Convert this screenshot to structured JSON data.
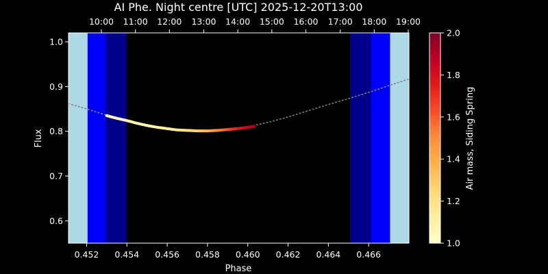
{
  "chart_data": {
    "type": "scatter",
    "title": "AI Phe. Night centre [UTC] 2025-12-20T13:00",
    "xlabel": "Phase",
    "ylabel": "Flux",
    "xlim": [
      0.4511,
      0.468
    ],
    "ylim": [
      0.55,
      1.02
    ],
    "x_ticks": [
      {
        "value": 0.452,
        "label": "0.452"
      },
      {
        "value": 0.454,
        "label": "0.454"
      },
      {
        "value": 0.456,
        "label": "0.456"
      },
      {
        "value": 0.458,
        "label": "0.458"
      },
      {
        "value": 0.46,
        "label": "0.460"
      },
      {
        "value": 0.462,
        "label": "0.462"
      },
      {
        "value": 0.464,
        "label": "0.464"
      },
      {
        "value": 0.466,
        "label": "0.466"
      }
    ],
    "y_ticks": [
      {
        "value": 0.6,
        "label": "0.6"
      },
      {
        "value": 0.7,
        "label": "0.7"
      },
      {
        "value": 0.8,
        "label": "0.8"
      },
      {
        "value": 0.9,
        "label": "0.9"
      },
      {
        "value": 1.0,
        "label": "1.0"
      }
    ],
    "top_axis_ticks": [
      {
        "phase": 0.45268,
        "label": "10:00"
      },
      {
        "phase": 0.45364,
        "label": "11:00"
      },
      {
        "phase": 0.4546,
        "label": "12:00"
      },
      {
        "phase": 0.45557,
        "label": "13:00"
      },
      {
        "phase": 0.45653,
        "label": "14:00"
      },
      {
        "phase": 0.45749,
        "label": "15:00"
      },
      {
        "phase": 0.45845,
        "label": "16:00"
      },
      {
        "phase": 0.45942,
        "label": "17:00"
      },
      {
        "phase": 0.46038,
        "label": "18:00"
      },
      {
        "phase": 0.46134,
        "label": "19:00"
      }
    ],
    "twilight_bands": [
      {
        "phase_start": 0.4511,
        "phase_end": 0.45205,
        "color": "#add8e6"
      },
      {
        "phase_start": 0.45205,
        "phase_end": 0.45295,
        "color": "#0000ff"
      },
      {
        "phase_start": 0.45295,
        "phase_end": 0.45398,
        "color": "#00008b"
      },
      {
        "phase_start": 0.45398,
        "phase_end": 0.46508,
        "color": "#000000"
      },
      {
        "phase_start": 0.46508,
        "phase_end": 0.46612,
        "color": "#00008b"
      },
      {
        "phase_start": 0.46612,
        "phase_end": 0.46706,
        "color": "#0000ff"
      },
      {
        "phase_start": 0.46706,
        "phase_end": 0.468,
        "color": "#add8e6"
      }
    ],
    "model_curve": {
      "color": "#808080",
      "style": "dotted",
      "points": [
        [
          0.4511,
          0.862
        ],
        [
          0.452,
          0.85
        ],
        [
          0.453,
          0.836
        ],
        [
          0.454,
          0.824
        ],
        [
          0.455,
          0.813
        ],
        [
          0.456,
          0.806
        ],
        [
          0.457,
          0.802
        ],
        [
          0.458,
          0.801
        ],
        [
          0.459,
          0.804
        ],
        [
          0.46,
          0.81
        ],
        [
          0.461,
          0.82
        ],
        [
          0.462,
          0.832
        ],
        [
          0.463,
          0.846
        ],
        [
          0.464,
          0.86
        ],
        [
          0.465,
          0.873
        ],
        [
          0.466,
          0.887
        ],
        [
          0.467,
          0.902
        ],
        [
          0.468,
          0.917
        ]
      ]
    },
    "observed_series": {
      "color_by": "airmass",
      "points": [
        {
          "x": 0.453,
          "y": 0.835,
          "airmass": 1.05
        },
        {
          "x": 0.4535,
          "y": 0.829,
          "airmass": 1.05
        },
        {
          "x": 0.454,
          "y": 0.824,
          "airmass": 1.06
        },
        {
          "x": 0.4545,
          "y": 0.818,
          "airmass": 1.07
        },
        {
          "x": 0.455,
          "y": 0.813,
          "airmass": 1.08
        },
        {
          "x": 0.4555,
          "y": 0.809,
          "airmass": 1.1
        },
        {
          "x": 0.456,
          "y": 0.806,
          "airmass": 1.13
        },
        {
          "x": 0.4565,
          "y": 0.803,
          "airmass": 1.17
        },
        {
          "x": 0.457,
          "y": 0.802,
          "airmass": 1.22
        },
        {
          "x": 0.4575,
          "y": 0.801,
          "airmass": 1.29
        },
        {
          "x": 0.458,
          "y": 0.801,
          "airmass": 1.38
        },
        {
          "x": 0.4585,
          "y": 0.802,
          "airmass": 1.5
        },
        {
          "x": 0.459,
          "y": 0.804,
          "airmass": 1.62
        },
        {
          "x": 0.4595,
          "y": 0.806,
          "airmass": 1.75
        },
        {
          "x": 0.46,
          "y": 0.809,
          "airmass": 1.85
        },
        {
          "x": 0.4603,
          "y": 0.811,
          "airmass": 1.9
        }
      ]
    },
    "colorbar": {
      "label": "Air mass, Siding Spring",
      "range": [
        1.0,
        2.0
      ],
      "ticks": [
        {
          "value": 1.0,
          "label": "1.0"
        },
        {
          "value": 1.2,
          "label": "1.2"
        },
        {
          "value": 1.4,
          "label": "1.4"
        },
        {
          "value": 1.6,
          "label": "1.6"
        },
        {
          "value": 1.8,
          "label": "1.8"
        },
        {
          "value": 2.0,
          "label": "2.0"
        }
      ],
      "colormap": "YlOrRd",
      "colormap_stops": [
        "#ffffcc",
        "#ffeda0",
        "#fed976",
        "#feb24c",
        "#fd8d3c",
        "#fc4e2a",
        "#e31a1c",
        "#bd0026",
        "#800026"
      ]
    },
    "grid": false
  }
}
